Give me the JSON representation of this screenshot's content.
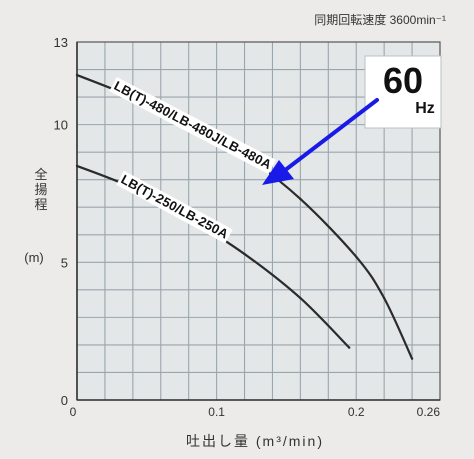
{
  "chart_data": {
    "type": "line",
    "speed_label": "同期回転速度 3600min⁻¹",
    "frequency": {
      "value": "60",
      "unit": "Hz"
    },
    "ylabel": "全揚程",
    "yunit": "(m)",
    "xlabel": "吐出し量 (m³/min)",
    "xlim": [
      0,
      0.26
    ],
    "ylim": [
      0,
      13
    ],
    "x_ticks": [
      {
        "value": 0,
        "label": "0"
      },
      {
        "value": 0.1,
        "label": "0.1"
      },
      {
        "value": 0.2,
        "label": "0.2"
      },
      {
        "value": 0.26,
        "label": "0.26"
      }
    ],
    "y_ticks": [
      {
        "value": 0,
        "label": "0"
      },
      {
        "value": 5,
        "label": "5"
      },
      {
        "value": 10,
        "label": "10"
      },
      {
        "value": 13,
        "label": "13"
      }
    ],
    "grid": true,
    "series": [
      {
        "name": "LB(T)-480/LB-480J/LB-480A",
        "x": [
          0,
          0.04,
          0.08,
          0.12,
          0.16,
          0.2,
          0.22,
          0.24
        ],
        "y": [
          11.8,
          11.0,
          10.1,
          8.9,
          7.3,
          5.2,
          3.7,
          1.5
        ],
        "label_at": [
          0.01,
          0.135
        ]
      },
      {
        "name": "LB(T)-250/LB-250A",
        "x": [
          0,
          0.04,
          0.08,
          0.12,
          0.16,
          0.195
        ],
        "y": [
          8.5,
          7.7,
          6.6,
          5.3,
          3.7,
          1.9
        ],
        "label_at": [
          0.015,
          0.115
        ]
      }
    ],
    "colors": {
      "arrow": "#1a1ae8",
      "curve": "#2b2b2b",
      "grid": "#9aa6ad",
      "label_box": "#ffffff",
      "background": "#e3e7e8"
    }
  }
}
